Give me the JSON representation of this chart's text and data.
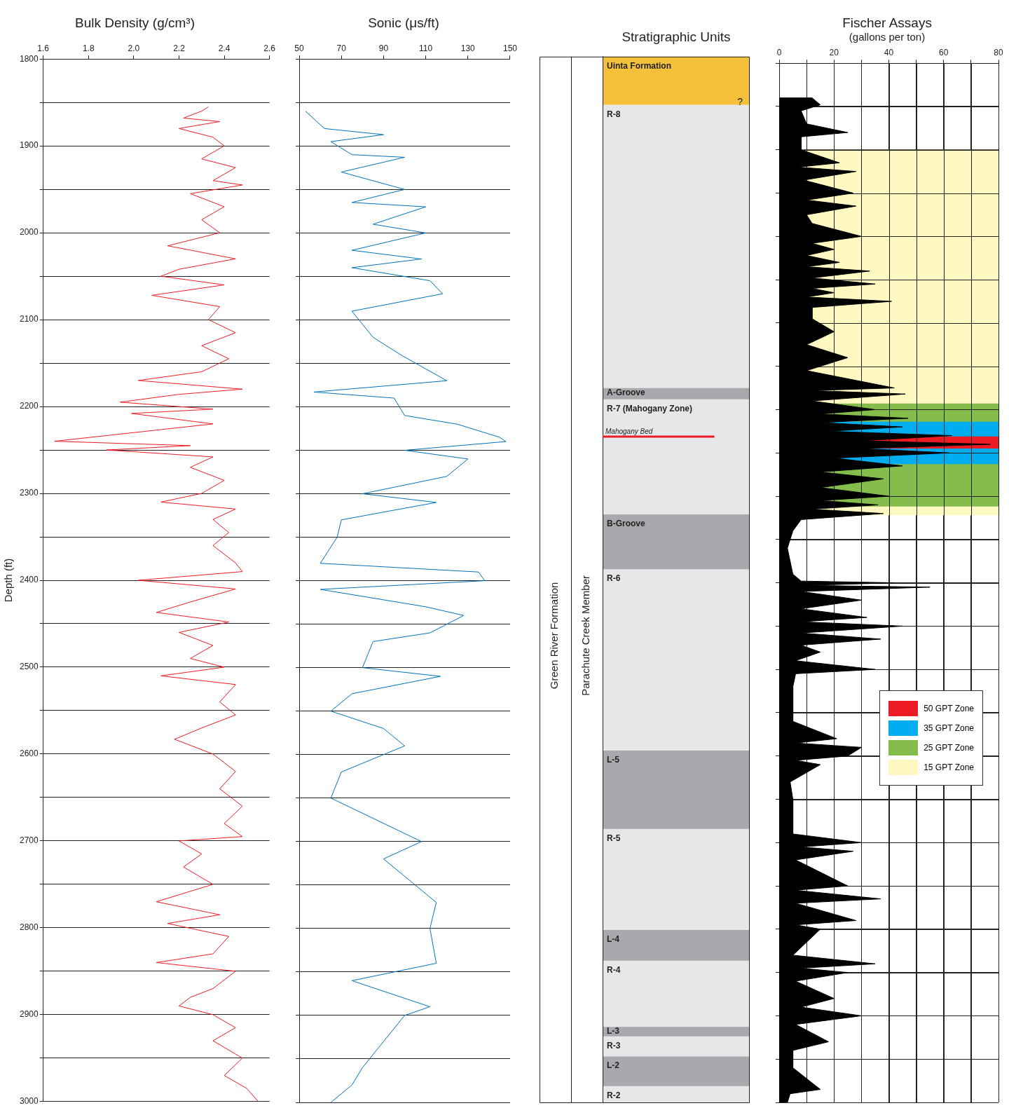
{
  "chart_data": [
    {
      "type": "line",
      "title": "Bulk Density (g/cm³)",
      "ylabel": "Depth (ft)",
      "xlim": [
        1.6,
        2.6
      ],
      "xticks": [
        {
          "value": 1.6,
          "label": "1.6"
        },
        1.8,
        {
          "value": 2.0,
          "label": "2.0"
        },
        2.2,
        2.4,
        2.6
      ],
      "ylim": [
        3000,
        1800
      ],
      "yticks": [
        1800,
        {
          "value": 1850,
          "label": null
        },
        1900,
        {
          "value": 1950,
          "label": null
        },
        2000,
        {
          "value": 2050,
          "label": null
        },
        2100,
        {
          "value": 2150,
          "label": null
        },
        2200,
        {
          "value": 2250,
          "label": null
        },
        2300,
        {
          "value": 2350,
          "label": null
        },
        2400,
        {
          "value": 2450,
          "label": null
        },
        2500,
        {
          "value": 2550,
          "label": null
        },
        2600,
        {
          "value": 2650,
          "label": null
        },
        2700,
        {
          "value": 2750,
          "label": null
        },
        2800,
        {
          "value": 2850,
          "label": null
        },
        2900,
        {
          "value": 2950,
          "label": null
        },
        3000
      ],
      "grid": "y",
      "series": [
        {
          "color": "#ed1c24",
          "x": [
            2.33,
            2.3,
            2.22,
            2.38,
            2.2,
            2.35,
            2.4,
            2.3,
            2.45,
            2.35,
            2.48,
            2.25,
            2.4,
            2.3,
            2.38,
            2.15,
            2.45,
            2.2,
            2.12,
            2.4,
            2.08,
            2.38,
            2.33,
            2.45,
            2.3,
            2.42,
            2.3,
            2.02,
            2.48,
            2.2,
            1.94,
            2.35,
            1.99,
            2.35,
            2.0,
            1.65,
            2.25,
            1.88,
            2.35,
            2.25,
            2.4,
            2.3,
            2.12,
            2.45,
            2.35,
            2.42,
            2.35,
            2.45,
            2.48,
            2.02,
            2.45,
            2.25,
            2.1,
            2.42,
            2.2,
            2.35,
            2.25,
            2.4,
            2.12,
            2.45,
            2.38,
            2.45,
            2.3,
            2.18,
            2.35,
            2.45,
            2.38,
            2.48,
            2.4,
            2.48,
            2.2,
            2.3,
            2.22,
            2.35,
            2.1,
            2.38,
            2.15,
            2.42,
            2.35,
            2.1,
            2.45,
            2.35,
            2.25,
            2.2,
            2.35,
            2.45,
            2.35,
            2.48,
            2.4,
            2.5,
            2.55
          ],
          "values": [
            1855,
            1860,
            1868,
            1872,
            1880,
            1890,
            1900,
            1915,
            1925,
            1940,
            1945,
            1955,
            1970,
            1985,
            2000,
            2015,
            2030,
            2042,
            2050,
            2060,
            2072,
            2085,
            2100,
            2115,
            2130,
            2145,
            2160,
            2170,
            2180,
            2186,
            2195,
            2203,
            2208,
            2220,
            2230,
            2240,
            2245,
            2250,
            2258,
            2270,
            2285,
            2300,
            2310,
            2318,
            2330,
            2345,
            2360,
            2380,
            2390,
            2400,
            2410,
            2425,
            2437,
            2448,
            2460,
            2475,
            2490,
            2500,
            2510,
            2520,
            2540,
            2555,
            2570,
            2583,
            2600,
            2620,
            2640,
            2660,
            2680,
            2695,
            2700,
            2715,
            2730,
            2750,
            2770,
            2785,
            2795,
            2810,
            2830,
            2840,
            2850,
            2870,
            2880,
            2890,
            2900,
            2915,
            2930,
            2950,
            2970,
            2985,
            3000
          ]
        }
      ]
    },
    {
      "type": "line",
      "title": "Sonic (μs/ft)",
      "xlim": [
        50,
        150
      ],
      "xticks": [
        50,
        70,
        90,
        110,
        130,
        150
      ],
      "ylim": [
        3000,
        1800
      ],
      "yticks": [
        1800,
        {
          "value": 1850,
          "label": null
        },
        1900,
        {
          "value": 1950,
          "label": null
        },
        2000,
        {
          "value": 2050,
          "label": null
        },
        2100,
        {
          "value": 2150,
          "label": null
        },
        2200,
        {
          "value": 2250,
          "label": null
        },
        2300,
        {
          "value": 2350,
          "label": null
        },
        2400,
        {
          "value": 2450,
          "label": null
        },
        2500,
        {
          "value": 2550,
          "label": null
        },
        2600,
        {
          "value": 2650,
          "label": null
        },
        2700,
        {
          "value": 2750,
          "label": null
        },
        2800,
        {
          "value": 2850,
          "label": null
        },
        2900,
        {
          "value": 2950,
          "label": null
        },
        3000
      ],
      "grid": "y",
      "tick_labels": "x",
      "series": [
        {
          "color": "#0072bc",
          "x": [
            53,
            62,
            90,
            65,
            75,
            100,
            70,
            100,
            75,
            110,
            85,
            110,
            75,
            108,
            75,
            112,
            118,
            75,
            85,
            98,
            120,
            57,
            95,
            100,
            125,
            145,
            148,
            100,
            130,
            120,
            80,
            115,
            70,
            68,
            60,
            135,
            138,
            60,
            110,
            128,
            112,
            85,
            80,
            117,
            75,
            65,
            90,
            100,
            70,
            65,
            108,
            90,
            105,
            115,
            112,
            115,
            75,
            112,
            100,
            90,
            80,
            75,
            65
          ],
          "values": [
            1860,
            1880,
            1887,
            1895,
            1910,
            1913,
            1930,
            1950,
            1965,
            1970,
            1990,
            2000,
            2020,
            2030,
            2040,
            2055,
            2070,
            2090,
            2120,
            2140,
            2170,
            2183,
            2190,
            2210,
            2220,
            2235,
            2240,
            2250,
            2260,
            2280,
            2300,
            2310,
            2330,
            2350,
            2380,
            2390,
            2400,
            2410,
            2430,
            2440,
            2460,
            2470,
            2500,
            2510,
            2530,
            2550,
            2570,
            2590,
            2620,
            2650,
            2700,
            2720,
            2750,
            2770,
            2800,
            2840,
            2860,
            2890,
            2900,
            2930,
            2960,
            2980,
            3000
          ]
        }
      ]
    },
    {
      "type": "bar",
      "title": "Stratigraphic Units",
      "categories": [
        null
      ],
      "ylim": [
        3000,
        1800
      ],
      "tick_labels": false,
      "series": [
        {
          "name": "Uinta Formation",
          "color": "#f5c03a",
          "base": [
            1800
          ],
          "values": [
            55
          ]
        },
        {
          "name": "R-8",
          "color": "#e6e7e8",
          "base": [
            1855
          ],
          "values": [
            325
          ]
        },
        {
          "name": "A-Groove",
          "color": "#a7a9ac",
          "base": [
            2180
          ],
          "values": [
            13
          ]
        },
        {
          "name": "R-7 (Mahogany Zone)",
          "color": "#e6e7e8",
          "base": [
            2193
          ],
          "values": [
            132
          ]
        },
        {
          "name": "B-Groove",
          "color": "#a7a9ac",
          "base": [
            2325
          ],
          "values": [
            63
          ]
        },
        {
          "name": "R-6",
          "color": "#e6e7e8",
          "base": [
            2388
          ],
          "values": [
            208
          ]
        },
        {
          "name": "L-5",
          "color": "#a7a9ac",
          "base": [
            2596
          ],
          "values": [
            90
          ]
        },
        {
          "name": "R-5",
          "color": "#e6e7e8",
          "base": [
            2686
          ],
          "values": [
            116
          ]
        },
        {
          "name": "L-4",
          "color": "#a7a9ac",
          "base": [
            2802
          ],
          "values": [
            35
          ]
        },
        {
          "name": "R-4",
          "color": "#e6e7e8",
          "base": [
            2837
          ],
          "values": [
            76
          ]
        },
        {
          "name": "L-3",
          "color": "#a7a9ac",
          "base": [
            2913
          ],
          "values": [
            11
          ]
        },
        {
          "name": "R-3",
          "color": "#e6e7e8",
          "base": [
            2924
          ],
          "values": [
            23
          ]
        },
        {
          "name": "L-2",
          "color": "#a7a9ac",
          "base": [
            2947
          ],
          "values": [
            34
          ]
        },
        {
          "name": "R-2",
          "color": "#e6e7e8",
          "base": [
            2981
          ],
          "values": [
            19
          ]
        }
      ],
      "ref_lines": [
        {
          "axis": "y",
          "value": 2236,
          "label": "Mahogany Bed",
          "color": "#ed1c24"
        }
      ],
      "annotations": [
        "Green River Formation",
        "Parachute Creek Member",
        {
          "text": "?",
          "y": 1855
        }
      ]
    },
    {
      "type": "area",
      "title": "Fischer Assays",
      "subtitle": "(gallons per ton)",
      "xlim": [
        0,
        80
      ],
      "xticks": [
        0,
        {
          "value": 10,
          "label": null
        },
        20,
        {
          "value": 30,
          "label": null
        },
        40,
        {
          "value": 50,
          "label": null
        },
        60,
        {
          "value": 70,
          "label": null
        },
        80
      ],
      "ylim": [
        3000,
        1800
      ],
      "yticks": [
        1800,
        {
          "value": 1850,
          "label": null
        },
        1900,
        {
          "value": 1950,
          "label": null
        },
        2000,
        {
          "value": 2050,
          "label": null
        },
        2100,
        {
          "value": 2150,
          "label": null
        },
        2200,
        {
          "value": 2250,
          "label": null
        },
        2300,
        {
          "value": 2350,
          "label": null
        },
        2400,
        {
          "value": 2450,
          "label": null
        },
        2500,
        {
          "value": 2550,
          "label": null
        },
        2600,
        {
          "value": 2650,
          "label": null
        },
        2700,
        {
          "value": 2750,
          "label": null
        },
        2800,
        {
          "value": 2850,
          "label": null
        },
        2900,
        {
          "value": 2950,
          "label": null
        },
        3000
      ],
      "grid": true,
      "tick_labels": "x",
      "legend": "right",
      "bands": [
        {
          "axis": "y",
          "from": 2231,
          "to": 2245,
          "label": "50 GPT Zone",
          "color": "#ed1c24"
        },
        {
          "axis": "y",
          "from": 2214,
          "to": 2263,
          "label": "35 GPT Zone",
          "color": "#00aeef"
        },
        {
          "axis": "y",
          "from": 2193,
          "to": 2312,
          "label": "25 GPT Zone",
          "color": "#84bd4b"
        },
        {
          "axis": "y",
          "from": 1900,
          "to": 2322,
          "label": "15 GPT Zone",
          "color": "#fff8c0"
        }
      ],
      "series": [
        {
          "color": "#000000",
          "x": [
            0,
            12,
            15,
            8,
            10,
            25,
            8,
            8,
            22,
            7,
            28,
            9,
            27,
            10,
            28,
            10,
            12,
            30,
            12,
            20,
            10,
            22,
            10,
            33,
            12,
            35,
            12,
            20,
            10,
            41,
            12,
            12,
            20,
            10,
            25,
            10,
            42,
            12,
            46,
            12,
            35,
            15,
            47,
            15,
            45,
            18,
            63,
            30,
            77,
            30,
            62,
            20,
            45,
            15,
            38,
            15,
            40,
            15,
            36,
            12,
            38,
            8,
            5,
            3,
            5,
            8,
            42,
            10,
            55,
            8,
            30,
            8,
            32,
            8,
            45,
            8,
            37,
            8,
            15,
            6,
            35,
            6,
            5,
            5,
            21,
            6,
            30,
            25,
            6,
            15,
            4,
            5,
            5,
            30,
            8,
            27,
            6,
            25,
            6,
            37,
            6,
            28,
            6,
            15,
            5,
            35,
            8,
            25,
            6,
            20,
            8,
            30,
            6,
            18,
            5,
            5,
            15,
            4,
            3,
            0
          ],
          "values": [
            1840,
            1840,
            1848,
            1855,
            1870,
            1880,
            1885,
            1900,
            1915,
            1920,
            1925,
            1935,
            1950,
            1958,
            1965,
            1975,
            1985,
            2000,
            2008,
            2015,
            2022,
            2030,
            2035,
            2040,
            2048,
            2055,
            2060,
            2065,
            2070,
            2075,
            2082,
            2095,
            2110,
            2125,
            2140,
            2155,
            2175,
            2178,
            2182,
            2190,
            2200,
            2205,
            2210,
            2215,
            2220,
            2225,
            2230,
            2236,
            2240,
            2245,
            2250,
            2256,
            2265,
            2272,
            2280,
            2290,
            2300,
            2305,
            2310,
            2315,
            2320,
            2327,
            2340,
            2360,
            2390,
            2398,
            2400,
            2403,
            2405,
            2410,
            2420,
            2430,
            2440,
            2445,
            2450,
            2458,
            2465,
            2472,
            2480,
            2490,
            2500,
            2505,
            2520,
            2560,
            2580,
            2585,
            2590,
            2600,
            2605,
            2610,
            2630,
            2650,
            2690,
            2700,
            2705,
            2710,
            2720,
            2750,
            2755,
            2765,
            2770,
            2790,
            2795,
            2800,
            2830,
            2840,
            2845,
            2850,
            2860,
            2880,
            2890,
            2900,
            2910,
            2930,
            2940,
            2960,
            2985,
            2990,
            3000,
            3000
          ]
        }
      ]
    }
  ]
}
